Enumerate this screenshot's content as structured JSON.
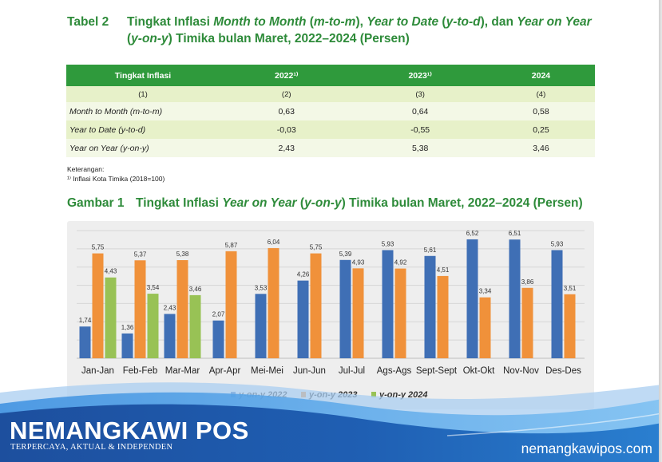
{
  "table_title": {
    "number": "Tabel 2",
    "line1_parts": [
      "Tingkat Inflasi ",
      "Month to Month",
      " (",
      "m-to-m",
      "), ",
      "Year to Date",
      " (",
      "y-to-d",
      "), dan ",
      "Year on Year"
    ],
    "line2_parts": [
      "(",
      "y-on-y",
      ") Timika bulan Maret, 2022–2024 (Persen)"
    ]
  },
  "table": {
    "headers": [
      "Tingkat Inflasi",
      "2022¹⁾",
      "2023¹⁾",
      "2024"
    ],
    "index_row": [
      "(1)",
      "(2)",
      "(3)",
      "(4)"
    ],
    "rows": [
      {
        "label": "Month to Month (m-to-m)",
        "v2022": "0,63",
        "v2023": "0,64",
        "v2024": "0,58"
      },
      {
        "label": "Year to Date (y-to-d)",
        "v2022": "-0,03",
        "v2023": "-0,55",
        "v2024": "0,25"
      },
      {
        "label": "Year on Year (y-on-y)",
        "v2022": "2,43",
        "v2023": "5,38",
        "v2024": "3,46"
      }
    ]
  },
  "notes": {
    "heading": "Keterangan:",
    "item": "¹⁾ Inflasi Kota Timika (2018=100)"
  },
  "figure_title": {
    "number": "Gambar 1",
    "parts": [
      "Tingkat Inflasi ",
      "Year on Year",
      " (",
      "y-on-y",
      ") Timika bulan Maret, 2022–2024 (Persen)"
    ]
  },
  "chart_data": {
    "type": "bar",
    "categories": [
      "Jan-Jan",
      "Feb-Feb",
      "Mar-Mar",
      "Apr-Apr",
      "Mei-Mei",
      "Jun-Jun",
      "Jul-Jul",
      "Ags-Ags",
      "Sept-Sept",
      "Okt-Okt",
      "Nov-Nov",
      "Des-Des"
    ],
    "series": [
      {
        "name": "y-on-y 2022",
        "color": "#3f6fb5",
        "values": [
          1.74,
          1.36,
          2.43,
          2.07,
          3.53,
          4.26,
          5.39,
          5.93,
          5.61,
          6.52,
          6.51,
          5.93
        ],
        "labels": [
          "1,74",
          "1,36",
          "2,43",
          "2,07",
          "3,53",
          "4,26",
          "5,39",
          "5,93",
          "5,61",
          "6,52",
          "6,51",
          "5,93"
        ]
      },
      {
        "name": "y-on-y 2023",
        "color": "#f0913a",
        "values": [
          5.75,
          5.37,
          5.38,
          5.87,
          6.04,
          5.75,
          4.93,
          4.92,
          4.51,
          3.34,
          3.86,
          3.51
        ],
        "labels": [
          "5,75",
          "5,37",
          "5,38",
          "5,87",
          "6,04",
          "5,75",
          "4,93",
          "4,92",
          "4,51",
          "3,34",
          "3,86",
          "3,51"
        ]
      },
      {
        "name": "y-on-y 2024",
        "color": "#98c255",
        "values": [
          4.43,
          3.54,
          3.46,
          null,
          null,
          null,
          null,
          null,
          null,
          null,
          null,
          null
        ],
        "labels": [
          "4,43",
          "3,54",
          "3,46"
        ]
      }
    ],
    "ylim": [
      0,
      7
    ],
    "grid": true,
    "legend": "bottom"
  },
  "footer": {
    "brand": "NEMANGKAWI POS",
    "tagline": "TERPERCAYA, AKTUAL & INDEPENDEN",
    "website": "nemangkawipos.com"
  }
}
